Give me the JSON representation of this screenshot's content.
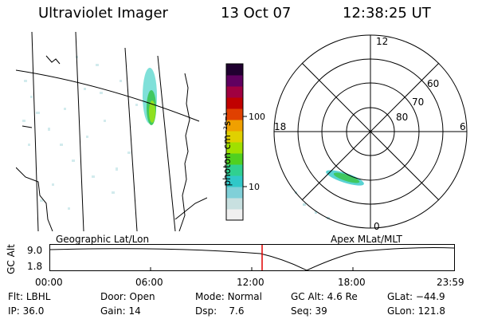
{
  "header": {
    "instrument": "Ultraviolet Imager",
    "date": "13 Oct 07",
    "time": "12:38:25 UT"
  },
  "colorbar": {
    "label": "photon cm⁻²s⁻¹",
    "ticks": [
      "100",
      "10"
    ],
    "colors": [
      "#f0f0f0",
      "#c8e0e0",
      "#80d0d8",
      "#30c8c8",
      "#30d090",
      "#50d020",
      "#a0e000",
      "#e0d000",
      "#f0a000",
      "#e04000",
      "#c00000",
      "#a00040",
      "#600060",
      "#200030"
    ]
  },
  "polar_plot": {
    "mlt_labels": {
      "top": "12",
      "bottom": "0",
      "left": "18",
      "right": "6"
    },
    "lat_labels": [
      "60",
      "70",
      "80"
    ]
  },
  "map_labels": {
    "geographic": "Geographic Lat/Lon",
    "apex": "Apex MLat/MLT"
  },
  "altitude_plot": {
    "ylabel": "GC Alt",
    "yticks": [
      "9.0",
      "1.8"
    ],
    "xticks": [
      "00:00",
      "06:00",
      "12:00",
      "18:00",
      "23:59"
    ],
    "current_marker_color": "#e00000"
  },
  "status": {
    "row1": [
      {
        "label": "Flt:",
        "value": "LBHL"
      },
      {
        "label": "Door:",
        "value": "Open"
      },
      {
        "label": "Mode:",
        "value": "Normal"
      },
      {
        "label": "GC Alt:",
        "value": "4.6 Re"
      },
      {
        "label": "GLat:",
        "value": "−44.9"
      }
    ],
    "row2": [
      {
        "label": "IP:",
        "value": "36.0"
      },
      {
        "label": "Gain:",
        "value": "14"
      },
      {
        "label": "Dsp:",
        "value": "7.6"
      },
      {
        "label": "Seq:",
        "value": "39"
      },
      {
        "label": "GLon:",
        "value": "121.8"
      }
    ]
  }
}
